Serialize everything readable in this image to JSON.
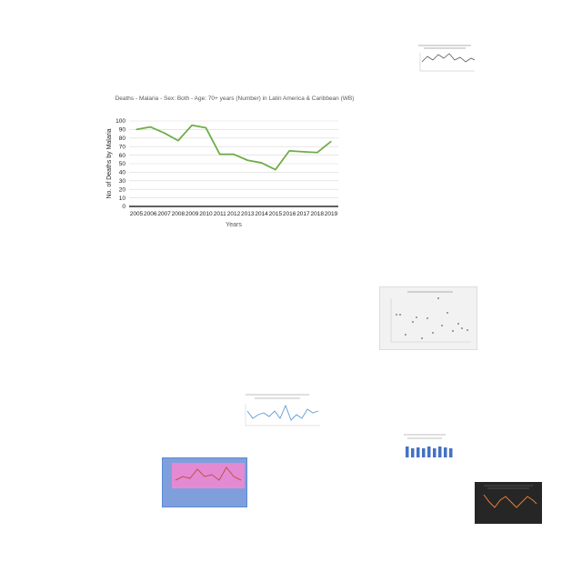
{
  "chart_data": [
    {
      "type": "line",
      "title": "Deaths - Malaria - Sex: Both - Age: 70+ years (Number) in Latin America & Caribbean (WB)",
      "xlabel": "Years",
      "ylabel": "No. of Deaths by Malaria",
      "x": [
        "2005",
        "2006",
        "2007",
        "2008",
        "2009",
        "2010",
        "2011",
        "2012",
        "2013",
        "2014",
        "2015",
        "2016",
        "2017",
        "2018",
        "2019"
      ],
      "series": [
        {
          "values": [
            90,
            93,
            86,
            77,
            95,
            92,
            61,
            61,
            54,
            51,
            43,
            65,
            64,
            63,
            76
          ]
        }
      ],
      "yticks": [
        "0",
        "10",
        "20",
        "30",
        "40",
        "50",
        "60",
        "70",
        "80",
        "90",
        "100"
      ],
      "ylim": [
        0,
        100
      ],
      "grid": true,
      "line_color": "#70ad47"
    }
  ],
  "thumbnails": [
    {
      "kind": "line",
      "bg": "#ffffff",
      "line": "#595959"
    },
    {
      "kind": "scatter",
      "bg": "#f2f2f2",
      "line": "#7f7f7f"
    },
    {
      "kind": "line",
      "bg": "#ffffff",
      "line": "#5b9bd5"
    },
    {
      "kind": "line",
      "bg": "#e97bd0",
      "line": "#c0504d"
    },
    {
      "kind": "bar",
      "bg": "#ffffff",
      "line": "#4472c4"
    },
    {
      "kind": "line",
      "bg": "#262626",
      "line": "#ed7d31"
    }
  ]
}
